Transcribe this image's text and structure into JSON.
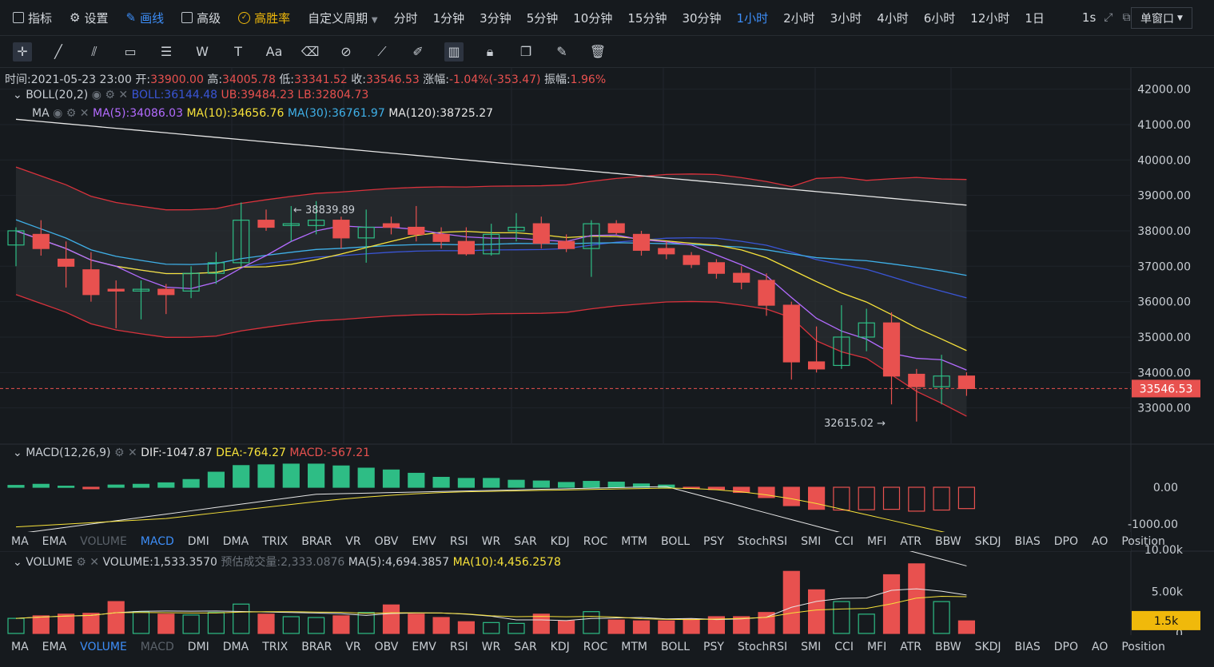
{
  "toolbar": {
    "items": [
      "指标",
      "设置",
      "画线",
      "高级",
      "高胜率"
    ],
    "custom_period": "自定义周期",
    "periods": [
      "分时",
      "1分钟",
      "3分钟",
      "5分钟",
      "10分钟",
      "15分钟",
      "30分钟",
      "1小时",
      "2小时",
      "3小时",
      "4小时",
      "6小时",
      "12小时",
      "1日"
    ],
    "active_period": "1小时",
    "speed": "1s",
    "window_mode": "单窗口"
  },
  "info_bar": {
    "time_label": "时间:",
    "time": "2021-05-23 23:00",
    "open_label": "开:",
    "open": "33900.00",
    "high_label": "高:",
    "high": "34005.78",
    "low_label": "低:",
    "low": "33341.52",
    "close_label": "收:",
    "close": "33546.53",
    "change_label": "涨幅:",
    "change": "-1.04%(-353.47)",
    "amp_label": "振幅:",
    "amp": "1.96%"
  },
  "boll": {
    "name": "BOLL(20,2)",
    "mid": "BOLL:36144.48",
    "ub": "UB:39484.23",
    "lb": "LB:32804.73"
  },
  "ma": {
    "name": "MA",
    "ma5": "MA(5):34086.03",
    "ma10": "MA(10):34656.76",
    "ma30": "MA(30):36761.97",
    "ma120": "MA(120):38725.27"
  },
  "price_axis": [
    "42000.00",
    "41000.00",
    "40000.00",
    "39000.00",
    "38000.00",
    "37000.00",
    "36000.00",
    "35000.00",
    "34000.00",
    "33000.00"
  ],
  "current_price": "33546.53",
  "annot_high": "← 38839.89",
  "annot_low": "32615.02 →",
  "macd": {
    "name": "MACD(12,26,9)",
    "dif": "DIF:-1047.87",
    "dea": "DEA:-764.27",
    "macd": "MACD:-567.21",
    "axis": [
      "0.00",
      "-1000.00"
    ]
  },
  "indicator_tabs": [
    "MA",
    "EMA",
    "VOLUME",
    "MACD",
    "DMI",
    "DMA",
    "TRIX",
    "BRAR",
    "VR",
    "OBV",
    "EMV",
    "RSI",
    "WR",
    "SAR",
    "KDJ",
    "ROC",
    "MTM",
    "BOLL",
    "PSY",
    "StochRSI",
    "SMI",
    "CCI",
    "MFI",
    "ATR",
    "BBW",
    "SKDJ",
    "BIAS",
    "DPO",
    "AO",
    "Position"
  ],
  "volume": {
    "name": "VOLUME",
    "value": "VOLUME:1,533.3570",
    "est": "预估成交量:2,333.0876",
    "ma5": "MA(5):4,694.3857",
    "ma10": "MA(10):4,456.2578",
    "axis": [
      "10.00k",
      "5.00k",
      "0"
    ],
    "current": "1.5k"
  },
  "colors": {
    "up": "#2ebd85",
    "down": "#e8514f",
    "ma5": "#b36bff",
    "ma10": "#f7e23a",
    "ma30": "#3fb0e8",
    "ma120": "#e6e6e6",
    "boll_mid": "#3a55d6",
    "boll_band": "#d9323c",
    "accent": "#3d8ef8",
    "gold": "#f0b90b"
  },
  "chart_data": {
    "type": "candlestick",
    "y_range": [
      32000,
      42600
    ],
    "candles": [
      {
        "o": 37600,
        "h": 38100,
        "l": 37000,
        "c": 38000
      },
      {
        "o": 37900,
        "h": 38300,
        "l": 37300,
        "c": 37500
      },
      {
        "o": 37200,
        "h": 37700,
        "l": 36400,
        "c": 37000
      },
      {
        "o": 36900,
        "h": 37400,
        "l": 36000,
        "c": 36200
      },
      {
        "o": 36350,
        "h": 36600,
        "l": 35250,
        "c": 36300
      },
      {
        "o": 36300,
        "h": 36600,
        "l": 35500,
        "c": 36350
      },
      {
        "o": 36350,
        "h": 36500,
        "l": 35650,
        "c": 36200
      },
      {
        "o": 36300,
        "h": 37000,
        "l": 36100,
        "c": 36800
      },
      {
        "o": 36800,
        "h": 37400,
        "l": 36500,
        "c": 37100
      },
      {
        "o": 37100,
        "h": 38800,
        "l": 37000,
        "c": 38300
      },
      {
        "o": 38300,
        "h": 38600,
        "l": 38000,
        "c": 38100
      },
      {
        "o": 38150,
        "h": 38700,
        "l": 37700,
        "c": 38200
      },
      {
        "o": 38150,
        "h": 38839,
        "l": 37900,
        "c": 38300
      },
      {
        "o": 38300,
        "h": 38400,
        "l": 37500,
        "c": 37800
      },
      {
        "o": 37800,
        "h": 38600,
        "l": 37100,
        "c": 38100
      },
      {
        "o": 38200,
        "h": 38400,
        "l": 37900,
        "c": 38100
      },
      {
        "o": 38100,
        "h": 38700,
        "l": 37700,
        "c": 37900
      },
      {
        "o": 37900,
        "h": 38100,
        "l": 37500,
        "c": 37700
      },
      {
        "o": 37700,
        "h": 38100,
        "l": 37300,
        "c": 37350
      },
      {
        "o": 37350,
        "h": 38200,
        "l": 37300,
        "c": 37900
      },
      {
        "o": 38000,
        "h": 38500,
        "l": 37700,
        "c": 38100
      },
      {
        "o": 38200,
        "h": 38400,
        "l": 37500,
        "c": 37650
      },
      {
        "o": 37700,
        "h": 37900,
        "l": 37400,
        "c": 37500
      },
      {
        "o": 37500,
        "h": 38300,
        "l": 36700,
        "c": 38200
      },
      {
        "o": 38200,
        "h": 38300,
        "l": 37900,
        "c": 37950
      },
      {
        "o": 37900,
        "h": 38000,
        "l": 37300,
        "c": 37450
      },
      {
        "o": 37500,
        "h": 37700,
        "l": 37200,
        "c": 37350
      },
      {
        "o": 37300,
        "h": 37400,
        "l": 36950,
        "c": 37050
      },
      {
        "o": 37100,
        "h": 37200,
        "l": 36650,
        "c": 36800
      },
      {
        "o": 36800,
        "h": 37000,
        "l": 36350,
        "c": 36550
      },
      {
        "o": 36600,
        "h": 36800,
        "l": 35600,
        "c": 35900
      },
      {
        "o": 35900,
        "h": 36000,
        "l": 33800,
        "c": 34300
      },
      {
        "o": 34300,
        "h": 35300,
        "l": 34000,
        "c": 34100
      },
      {
        "o": 34200,
        "h": 35900,
        "l": 34100,
        "c": 35000
      },
      {
        "o": 35000,
        "h": 35800,
        "l": 34600,
        "c": 35400
      },
      {
        "o": 35400,
        "h": 35700,
        "l": 33100,
        "c": 33900
      },
      {
        "o": 33950,
        "h": 34100,
        "l": 32615,
        "c": 33600
      },
      {
        "o": 33600,
        "h": 34500,
        "l": 33100,
        "c": 33900
      },
      {
        "o": 33900,
        "h": 34005,
        "l": 33341,
        "c": 33546
      }
    ],
    "macd_hist": [
      50,
      80,
      30,
      -40,
      60,
      80,
      120,
      210,
      410,
      590,
      610,
      630,
      630,
      580,
      520,
      470,
      380,
      270,
      240,
      240,
      190,
      170,
      130,
      160,
      140,
      90,
      60,
      -20,
      -60,
      -140,
      -280,
      -500,
      -600,
      -620,
      -610,
      -600,
      -650,
      -620,
      -580
    ],
    "volume": [
      1800,
      2100,
      2300,
      2400,
      3800,
      2600,
      2300,
      2200,
      2500,
      3500,
      2300,
      2000,
      1900,
      2100,
      2500,
      3400,
      2300,
      1900,
      1400,
      1300,
      1200,
      2300,
      1500,
      2600,
      1600,
      1500,
      1500,
      1700,
      2000,
      2000,
      2500,
      7400,
      5200,
      3800,
      2300,
      7000,
      8300,
      3800,
      1500
    ]
  }
}
